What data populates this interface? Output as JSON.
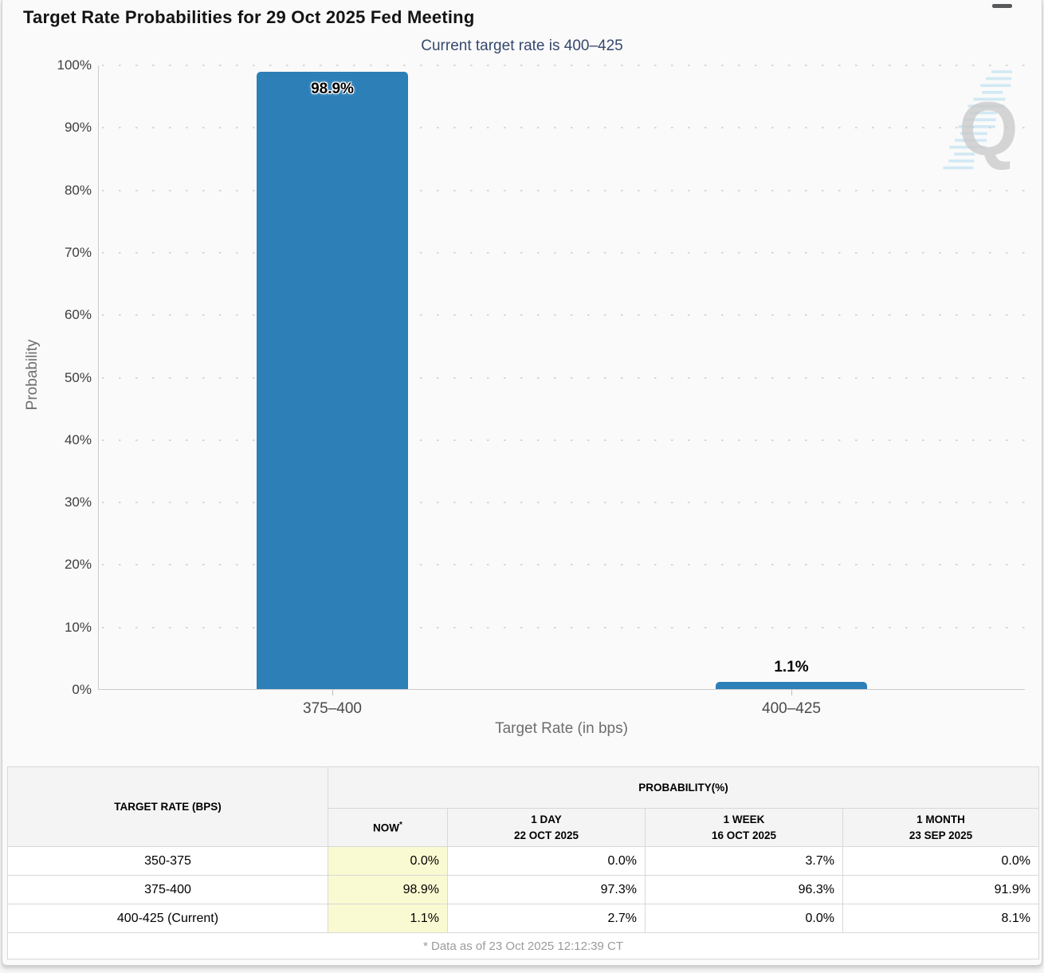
{
  "page": {
    "title": "Target Rate Probabilities for 29 Oct 2025 Fed Meeting",
    "menu_icon": "hamburger-icon",
    "watermark_letter": "Q"
  },
  "chart_data": {
    "type": "bar",
    "title": "Current target rate is 400–425",
    "categories": [
      "375–400",
      "400–425"
    ],
    "values": [
      98.9,
      1.1
    ],
    "value_labels": [
      "98.9%",
      "1.1%"
    ],
    "xlabel": "Target Rate (in bps)",
    "ylabel": "Probability",
    "ylim": [
      0,
      100
    ],
    "ytick_step": 10,
    "ytick_labels": [
      "0%",
      "10%",
      "20%",
      "30%",
      "40%",
      "50%",
      "60%",
      "70%",
      "80%",
      "90%",
      "100%"
    ],
    "bar_color": "#2d7fb8",
    "grid": "horizontal-dotted",
    "legend": "none"
  },
  "table": {
    "corner_header": "TARGET RATE (BPS)",
    "group_header": "PROBABILITY(%)",
    "columns": [
      {
        "line1": "NOW",
        "line2": "",
        "sup": "*"
      },
      {
        "line1": "1 DAY",
        "line2": "22 OCT 2025",
        "sup": ""
      },
      {
        "line1": "1 WEEK",
        "line2": "16 OCT 2025",
        "sup": ""
      },
      {
        "line1": "1 MONTH",
        "line2": "23 SEP 2025",
        "sup": ""
      }
    ],
    "rows": [
      {
        "label": "350-375",
        "values": [
          "0.0%",
          "0.0%",
          "3.7%",
          "0.0%"
        ]
      },
      {
        "label": "375-400",
        "values": [
          "98.9%",
          "97.3%",
          "96.3%",
          "91.9%"
        ]
      },
      {
        "label": "400-425 (Current)",
        "values": [
          "1.1%",
          "2.7%",
          "0.0%",
          "8.1%"
        ]
      }
    ],
    "now_highlight_color": "#fafad2",
    "footnote": "* Data as of 23 Oct 2025 12:12:39 CT"
  }
}
